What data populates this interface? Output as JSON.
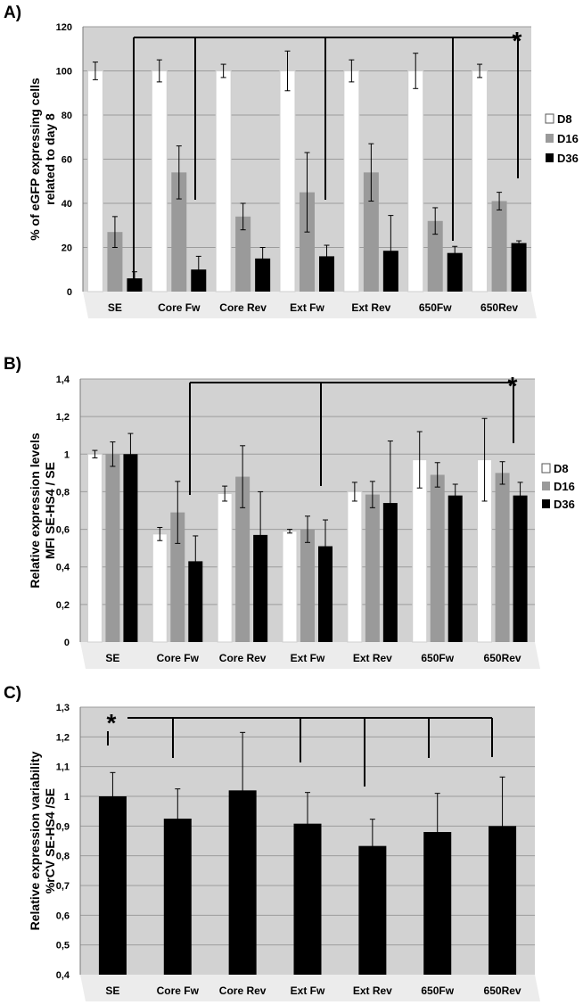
{
  "colors": {
    "D8": "#ffffff",
    "D16": "#9a9a9a",
    "D36": "#000000",
    "plot_bg": "#d2d2d2",
    "grid": "#9c9c9c"
  },
  "chart_data": [
    {
      "panel": "A)",
      "type": "bar",
      "ylabel_lines": [
        "% of eGFP expressing cells",
        "related to day 8"
      ],
      "ylim": [
        0,
        120
      ],
      "yticks": [
        "0",
        "20",
        "40",
        "60",
        "80",
        "100",
        "120"
      ],
      "categories": [
        "SE",
        "Core Fw",
        "Core Rev",
        "Ext Fw",
        "Ext Rev",
        "650Fw",
        "650Rev"
      ],
      "series": [
        {
          "name": "D8",
          "values": [
            100,
            100,
            100,
            100,
            100,
            100,
            100
          ],
          "errors": [
            4,
            5,
            3,
            9,
            5,
            8,
            3
          ]
        },
        {
          "name": "D16",
          "values": [
            27,
            54,
            34,
            45,
            54,
            32,
            41
          ],
          "errors": [
            7,
            12,
            6,
            18,
            13,
            6,
            4
          ]
        },
        {
          "name": "D36",
          "values": [
            6,
            10,
            15,
            16,
            18.5,
            17.5,
            22
          ],
          "errors": [
            3,
            6,
            5,
            5,
            16,
            3,
            1
          ]
        }
      ],
      "legend": [
        "D8",
        "D16",
        "D36"
      ],
      "significance": "*"
    },
    {
      "panel": "B)",
      "type": "bar",
      "ylabel_lines": [
        "Relative expression levels",
        "MFI SE-HS4 / SE"
      ],
      "ylim": [
        0,
        1.4
      ],
      "yticks": [
        "0",
        "0,2",
        "0,4",
        "0,6",
        "0,8",
        "1",
        "1,2",
        "1,4"
      ],
      "categories": [
        "SE",
        "Core Fw",
        "Core Rev",
        "Ext Fw",
        "Ext Rev",
        "650Fw",
        "650Rev"
      ],
      "series": [
        {
          "name": "D8",
          "values": [
            1.0,
            0.575,
            0.79,
            0.59,
            0.8,
            0.97,
            0.97
          ],
          "errors": [
            0.02,
            0.035,
            0.04,
            0.01,
            0.05,
            0.15,
            0.22
          ]
        },
        {
          "name": "D16",
          "values": [
            1.0,
            0.69,
            0.88,
            0.6,
            0.785,
            0.89,
            0.9
          ],
          "errors": [
            0.065,
            0.165,
            0.165,
            0.07,
            0.07,
            0.065,
            0.06
          ]
        },
        {
          "name": "D36",
          "values": [
            1.0,
            0.43,
            0.57,
            0.51,
            0.74,
            0.78,
            0.78
          ],
          "errors": [
            0.11,
            0.135,
            0.23,
            0.14,
            0.33,
            0.06,
            0.07
          ]
        }
      ],
      "legend": [
        "D8",
        "D16",
        "D36"
      ],
      "significance": "*"
    },
    {
      "panel": "C)",
      "type": "bar",
      "ylabel_lines": [
        "Relative expression variability",
        "%rCV SE-HS4 /SE"
      ],
      "ylim": [
        0.4,
        1.3
      ],
      "yticks": [
        "0,4",
        "0,5",
        "0,6",
        "0,7",
        "0,8",
        "0,9",
        "1",
        "1,1",
        "1,2",
        "1,3"
      ],
      "categories": [
        "SE",
        "Core Fw",
        "Core Rev",
        "Ext Fw",
        "Ext Rev",
        "650Fw",
        "650Rev"
      ],
      "series": [
        {
          "name": "rCV",
          "values": [
            1.0,
            0.925,
            1.02,
            0.908,
            0.833,
            0.88,
            0.9
          ],
          "errors": [
            0.08,
            0.1,
            0.195,
            0.105,
            0.09,
            0.13,
            0.165
          ]
        }
      ],
      "significance": "*"
    }
  ]
}
